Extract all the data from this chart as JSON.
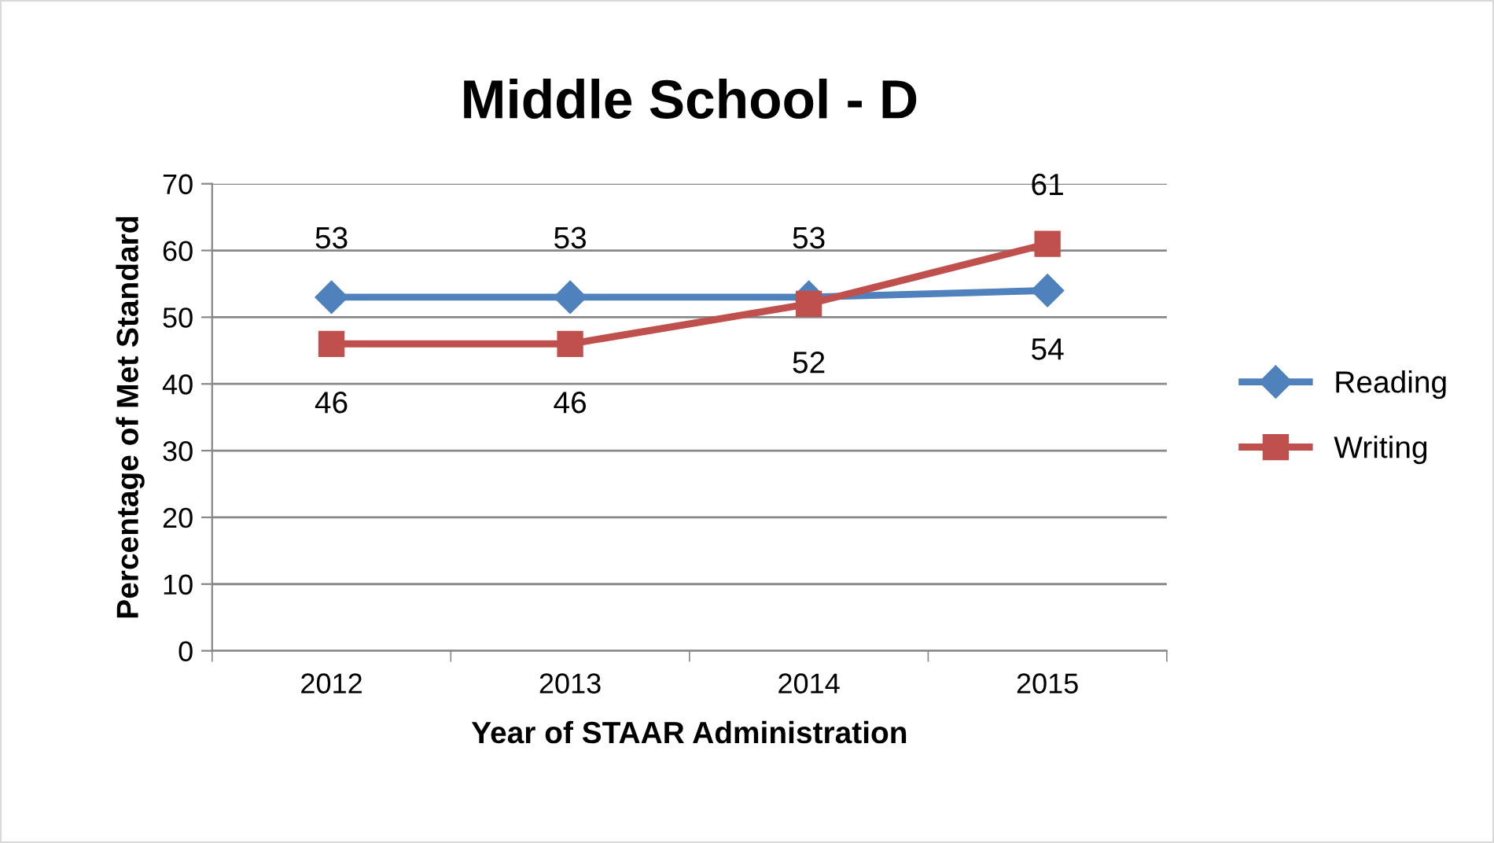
{
  "chart_data": {
    "type": "line",
    "title": "Middle School - D",
    "xlabel": "Year of STAAR Administration",
    "ylabel": "Percentage of Met Standard",
    "categories": [
      "2012",
      "2013",
      "2014",
      "2015"
    ],
    "series": [
      {
        "name": "Reading",
        "color": "#4f81bd",
        "marker": "diamond",
        "values": [
          53,
          53,
          53,
          54
        ]
      },
      {
        "name": "Writing",
        "color": "#c0504d",
        "marker": "square",
        "values": [
          46,
          46,
          52,
          61
        ]
      }
    ],
    "ylim": [
      0,
      70
    ],
    "yticks": [
      0,
      10,
      20,
      30,
      40,
      50,
      60,
      70
    ],
    "grid": "y",
    "legend": "right",
    "data_labels": true
  }
}
